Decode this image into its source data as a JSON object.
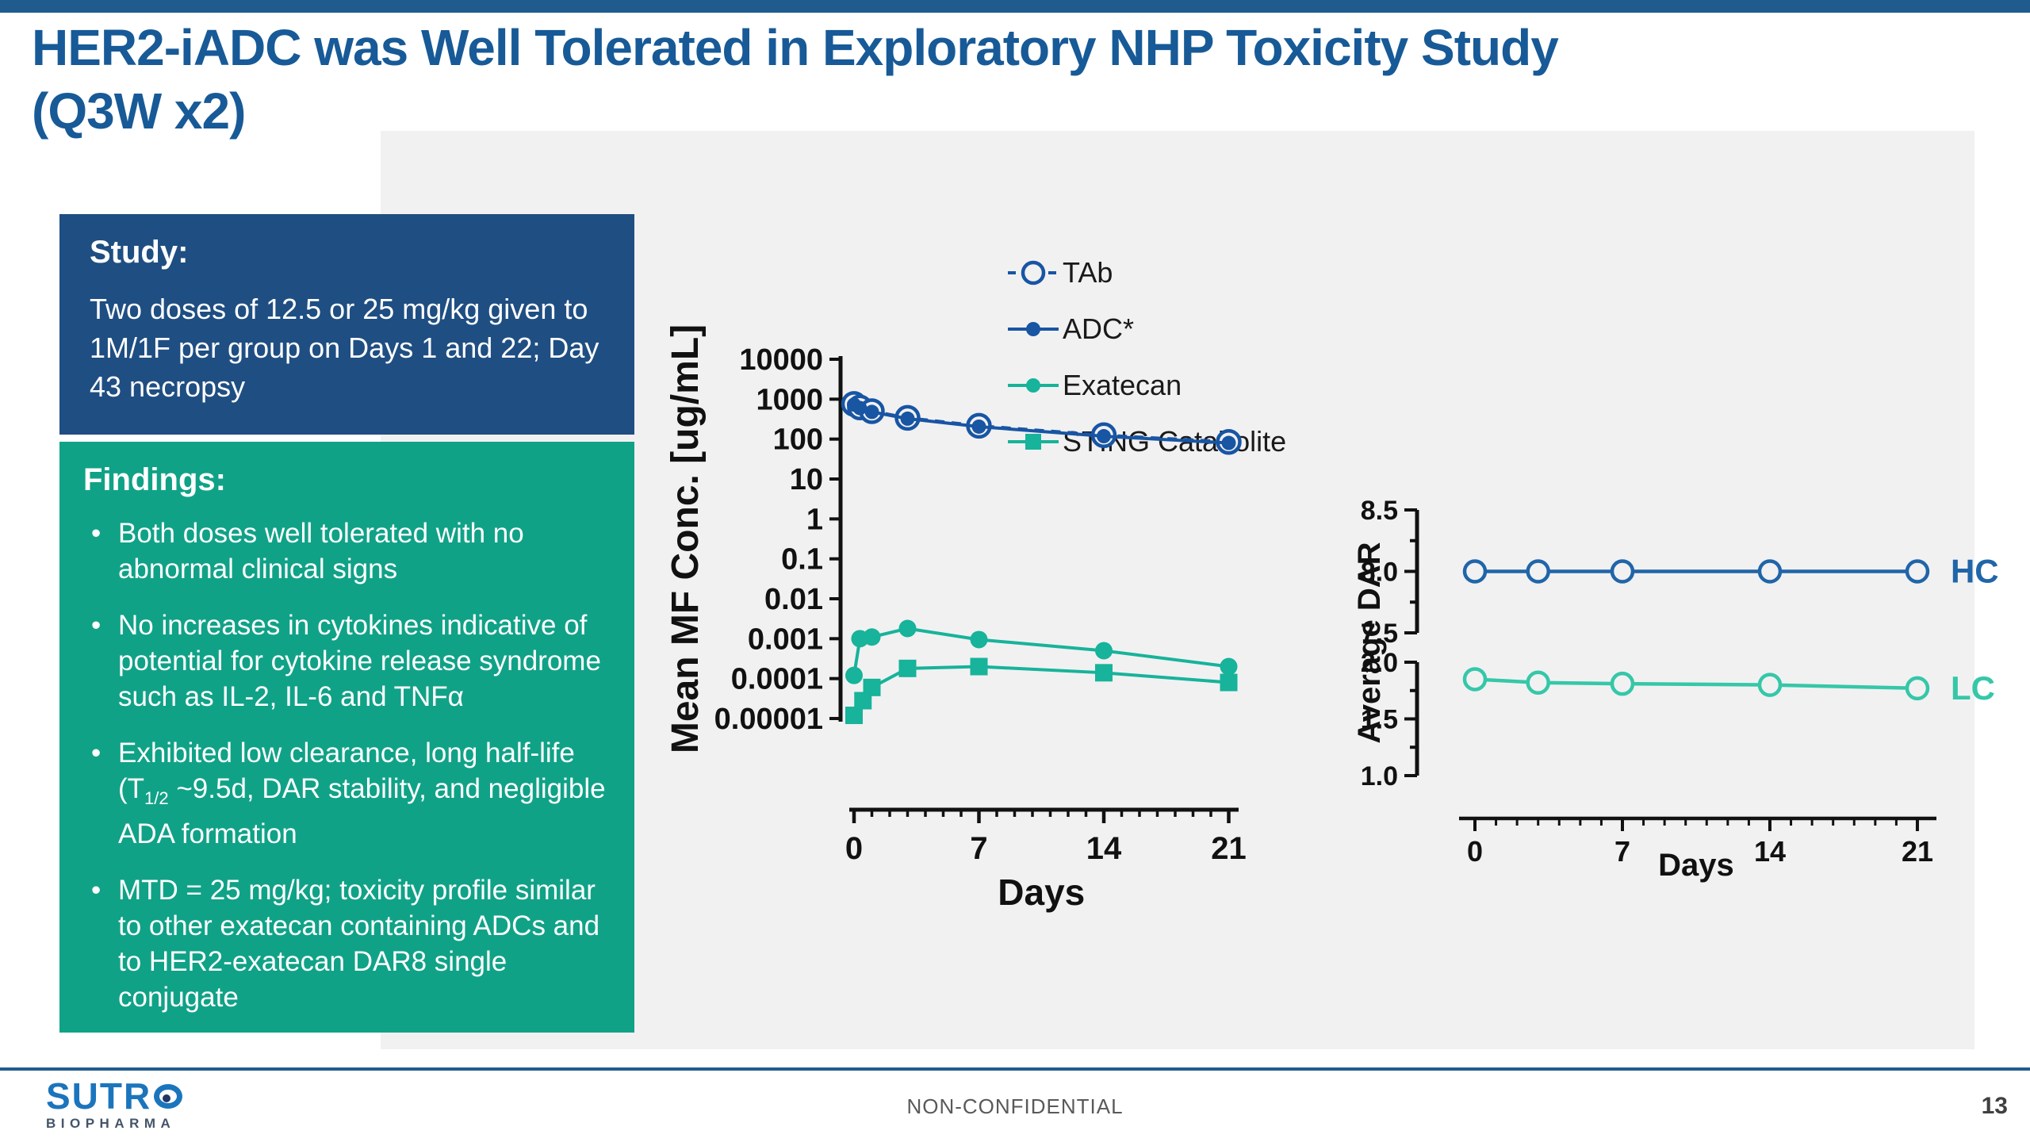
{
  "slide": {
    "title_line1": "HER2-iADC was Well Tolerated in Exploratory NHP Toxicity Study",
    "title_line2": "(Q3W x2)",
    "footer_center": "NON-CONFIDENTIAL",
    "page_number": "13",
    "logo_text": "SUTRO",
    "logo_subtext": "BIOPHARMA"
  },
  "study_box": {
    "heading": "Study:",
    "body": "Two doses of 12.5 or 25 mg/kg given to 1M/1F per group on Days 1 and 22; Day 43 necropsy"
  },
  "findings_box": {
    "heading": "Findings:",
    "bullets": [
      "Both doses well tolerated with no abnormal clinical signs",
      "No increases in cytokines indicative of potential for cytokine release syndrome such as IL-2, IL-6 and TNFα",
      {
        "pre": "Exhibited low clearance, long half-life (T",
        "sub": "1/2",
        "post": " ~9.5d, DAR stability, and negligible ADA formation"
      },
      "MTD = 25 mg/kg; toxicity profile similar to other exatecan containing ADCs and to HER2-exatecan DAR8 single conjugate"
    ]
  },
  "colors": {
    "accent_navy": "#1F5C8D",
    "title_blue": "#175A97",
    "study_box_bg": "#1F4E82",
    "findings_box_bg": "#10A287",
    "panel_bg": "#F1F1F2",
    "series_navy": "#1855A3",
    "series_teal": "#17B39A",
    "hc_navy": "#2065A8",
    "lc_teal": "#35C7A8",
    "axis_black": "#111111",
    "logo_blue": "#1B75BC",
    "logo_dark": "#44546A"
  },
  "chart_data": [
    {
      "id": "pk",
      "type": "line",
      "title": "",
      "xlabel": "Days",
      "ylabel": "Mean MF Conc. [ug/mL]",
      "yscale": "log",
      "ylim": [
        1e-05,
        10000
      ],
      "ytick_labels": [
        "10000",
        "1000",
        "100",
        "10",
        "1",
        "0.1",
        "0.01",
        "0.001",
        "0.0001",
        "0.00001"
      ],
      "xlim": [
        0,
        21
      ],
      "xticks": [
        0,
        7,
        14,
        21
      ],
      "xminor_step": 1,
      "grid": false,
      "legend_position": "top-right-inside",
      "series": [
        {
          "name": "TAb",
          "marker": "open-circle",
          "line": "dashed",
          "color": "#1855A3",
          "x": [
            0,
            0.33,
            1,
            3,
            7,
            14,
            21
          ],
          "y": [
            760,
            620,
            500,
            340,
            215,
            125,
            85
          ]
        },
        {
          "name": "ADC*",
          "marker": "filled-circle",
          "line": "solid",
          "color": "#1855A3",
          "x": [
            0,
            0.33,
            1,
            3,
            7,
            14,
            21
          ],
          "y": [
            730,
            600,
            480,
            325,
            205,
            118,
            80
          ]
        },
        {
          "name": "Exatecan",
          "marker": "filled-circle",
          "line": "solid",
          "color": "#17B39A",
          "x": [
            0,
            0.33,
            1,
            3,
            7,
            14,
            21
          ],
          "y": [
            0.00012,
            0.001,
            0.0011,
            0.0018,
            0.00095,
            0.0005,
            0.0002
          ]
        },
        {
          "name": "STING Catabolite",
          "marker": "filled-square",
          "line": "solid",
          "color": "#17B39A",
          "x": [
            0,
            0.5,
            1,
            3,
            7,
            14,
            21
          ],
          "y": [
            1.2e-05,
            2.8e-05,
            6e-05,
            0.00018,
            0.0002,
            0.00014,
            8e-05
          ]
        }
      ]
    },
    {
      "id": "dar",
      "type": "line",
      "xlabel": "Days",
      "ylabel": "Average DAR",
      "broken_y": true,
      "upper_ylim": [
        7.5,
        8.5
      ],
      "upper_yticks": [
        "8.5",
        "8.0",
        "7.5"
      ],
      "lower_ylim": [
        1.0,
        2.0
      ],
      "lower_yticks": [
        "2.0",
        "1.5",
        "1.0"
      ],
      "xlim": [
        0,
        21
      ],
      "xticks": [
        0,
        7,
        14,
        21
      ],
      "xminor_step": 1,
      "grid": false,
      "series": [
        {
          "name": "HC",
          "marker": "open-circle",
          "line": "solid",
          "color": "#2065A8",
          "x": [
            0,
            3,
            7,
            14,
            21
          ],
          "y": [
            8.0,
            8.0,
            8.0,
            8.0,
            8.0
          ]
        },
        {
          "name": "LC",
          "marker": "open-circle",
          "line": "solid",
          "color": "#35C7A8",
          "x": [
            0,
            3,
            7,
            14,
            21
          ],
          "y": [
            1.85,
            1.82,
            1.81,
            1.8,
            1.77
          ]
        }
      ]
    }
  ]
}
